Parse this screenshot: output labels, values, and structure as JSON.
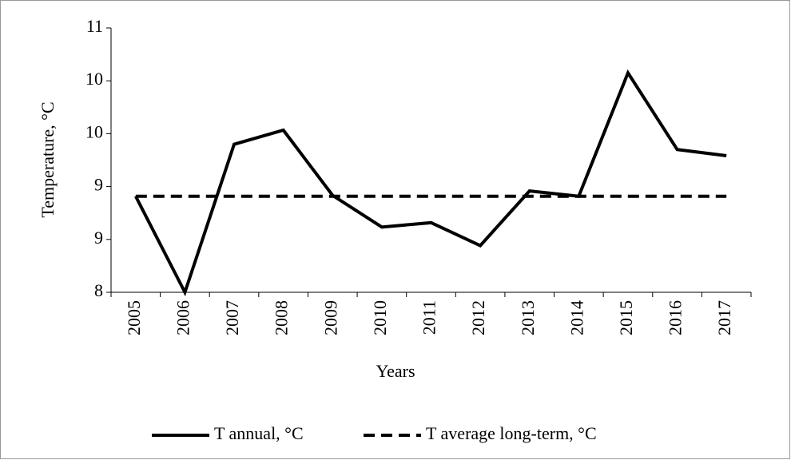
{
  "chart_data": {
    "type": "line",
    "x_label": "Years",
    "y_label": "Temperature, °C",
    "categories": [
      "2005",
      "2006",
      "2007",
      "2008",
      "2009",
      "2010",
      "2011",
      "2012",
      "2013",
      "2014",
      "2015",
      "2016",
      "2017"
    ],
    "series": [
      {
        "name": "T annual, °C",
        "color": "#000000",
        "dashed": false,
        "values": [
          9.09,
          8.0,
          9.68,
          9.84,
          9.1,
          8.74,
          8.79,
          8.53,
          9.15,
          9.09,
          10.49,
          9.62,
          9.55
        ]
      },
      {
        "name": "T average long-term, °C",
        "color": "#000000",
        "dashed": true,
        "values": [
          9.09,
          9.09,
          9.09,
          9.09,
          9.09,
          9.09,
          9.09,
          9.09,
          9.09,
          9.09,
          9.09,
          9.09,
          9.09
        ]
      }
    ],
    "ylim": [
      8,
      11
    ],
    "yticks": [
      {
        "value": 8,
        "label": "8"
      },
      {
        "value": 8.6,
        "label": "9"
      },
      {
        "value": 9.2,
        "label": "9"
      },
      {
        "value": 9.8,
        "label": "10"
      },
      {
        "value": 10.4,
        "label": "10"
      },
      {
        "value": 11,
        "label": "11"
      }
    ],
    "legend": "bottom"
  }
}
